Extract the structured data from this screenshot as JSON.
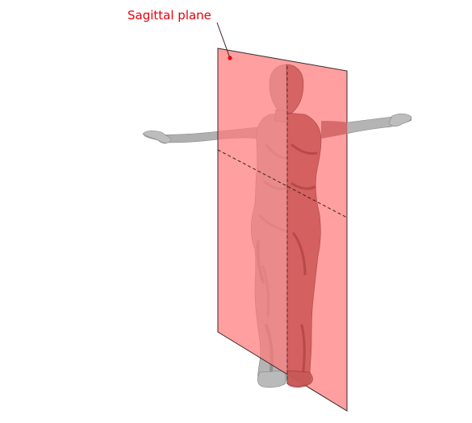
{
  "diagram": {
    "label": "Sagittal plane",
    "colors": {
      "label": "#e8000b",
      "plane_fill": "#ff8a8a",
      "plane_edge": "#3a2a2a",
      "body_light": "#c8c8c8",
      "body_mid": "#a2a2a2",
      "body_dark": "#6e6e6e",
      "body_in_plane": "#c85656",
      "leader": "#e8000b",
      "axis_dash": "#3a2020"
    }
  }
}
